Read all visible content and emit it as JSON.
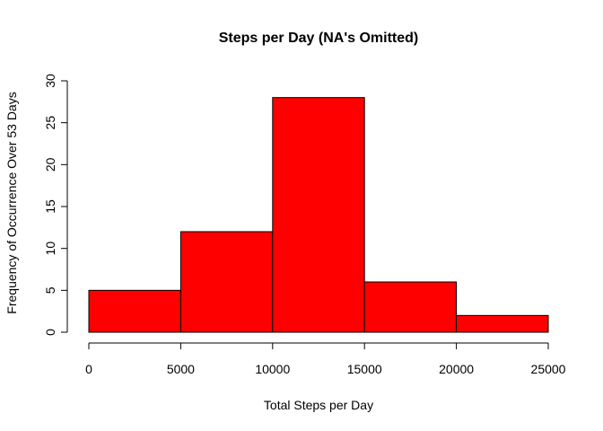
{
  "chart_data": {
    "type": "bar",
    "title": "Steps per Day (NA's Omitted)",
    "xlabel": "Total Steps per Day",
    "ylabel": "Frequency of Occurrence Over 53 Days",
    "bins": [
      {
        "from": 0,
        "to": 5000,
        "count": 5
      },
      {
        "from": 5000,
        "to": 10000,
        "count": 12
      },
      {
        "from": 10000,
        "to": 15000,
        "count": 28
      },
      {
        "from": 15000,
        "to": 20000,
        "count": 6
      },
      {
        "from": 20000,
        "to": 25000,
        "count": 2
      }
    ],
    "xlim": [
      0,
      25000
    ],
    "ylim": [
      0,
      30
    ],
    "xticks": [
      "0",
      "5000",
      "10000",
      "15000",
      "20000",
      "25000"
    ],
    "yticks": [
      "0",
      "5",
      "10",
      "15",
      "20",
      "25",
      "30"
    ],
    "grid": false,
    "bar_color": "#ff0000",
    "bar_edge_color": "#000000"
  }
}
